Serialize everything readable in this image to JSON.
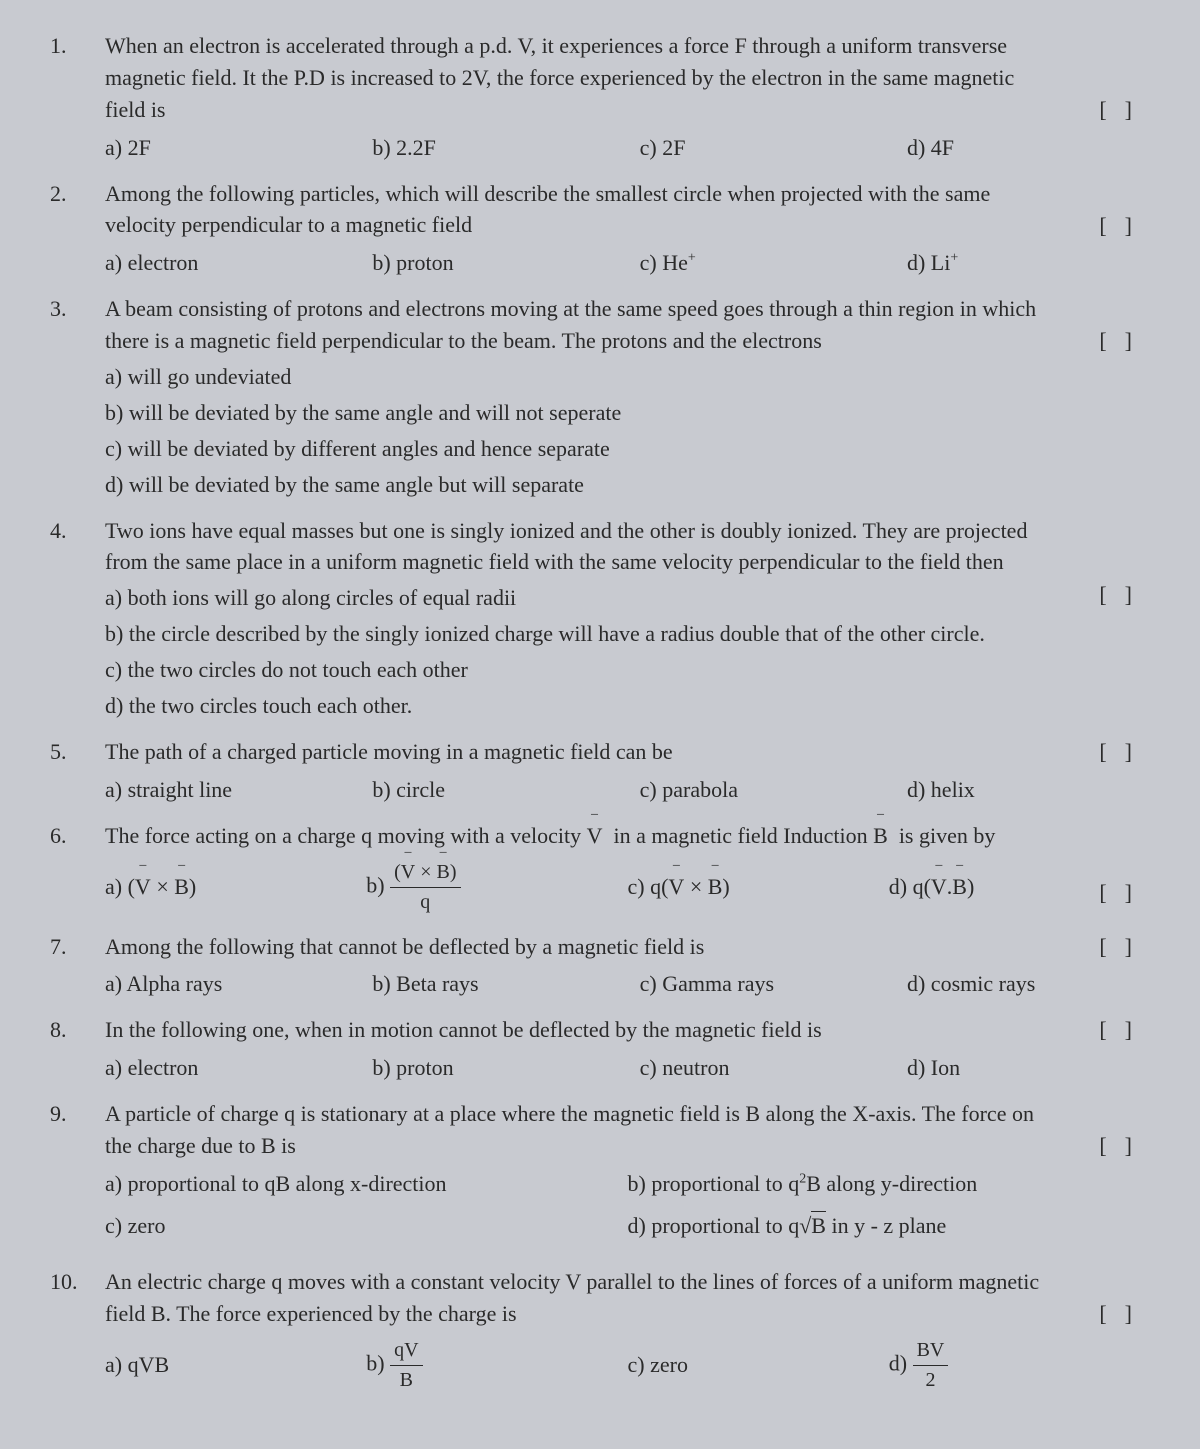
{
  "questions": [
    {
      "num": "1.",
      "text": "When an electron is accelerated through a p.d. V, it experiences a force F through a uniform transverse magnetic field. It the P.D is increased to 2V, the force experienced by the electron in the same magnetic field is",
      "bracket_line": 2,
      "options_inline": [
        {
          "label": "a) 2F"
        },
        {
          "label": "b) 2.2F"
        },
        {
          "label": "c) 2F"
        },
        {
          "label": "d) 4F"
        }
      ]
    },
    {
      "num": "2.",
      "text": "Among the following particles, which will describe the smallest circle when projected with the same velocity perpendicular to a magnetic field",
      "bracket_line": 1,
      "options_inline": [
        {
          "label": "a) electron"
        },
        {
          "label": "b) proton"
        },
        {
          "html": "c) He<sup>+</sup>"
        },
        {
          "html": "d) Li<sup>+</sup>"
        }
      ]
    },
    {
      "num": "3.",
      "text": "A beam consisting of protons and electrons moving at the same speed goes through a thin region in which there is a magnetic field perpendicular to the beam. The protons and the electrons",
      "bracket_line": 1,
      "options_list": [
        "a) will go undeviated",
        "b) will be deviated by the same angle and will not seperate",
        "c) will be deviated by different angles and hence separate",
        "d) will be deviated by the same angle but will separate"
      ]
    },
    {
      "num": "4.",
      "text": "Two ions have equal masses but one is singly ionized and the other is doubly ionized. They are projected from the same place in a uniform magnetic field with the same velocity perpendicular to the field then",
      "bracket_line": 2,
      "options_list": [
        "a) both ions will go along circles of equal radii",
        "b) the circle described by the singly ionized charge will have a radius double that of the other circle.",
        "c) the two circles do not touch each other",
        "d) the two circles touch each other."
      ]
    },
    {
      "num": "5.",
      "text": "The path of a charged particle moving in a magnetic field can be",
      "bracket_line": 0,
      "options_inline": [
        {
          "label": "a) straight line"
        },
        {
          "label": "b) circle"
        },
        {
          "label": "c) parabola"
        },
        {
          "label": "d) helix"
        }
      ]
    },
    {
      "num": "6.",
      "text_html": "The force acting on a charge q moving with a velocity <span class='vec'>V</span> &nbsp;in a magnetic field Induction <span class='vec'>B</span> &nbsp;is given by",
      "bracket_line": 1,
      "options_math": [
        "a) (<span class='vec'>V</span> × <span class='vec'>B</span>)",
        "b) <span class='frac'><span class='num'>(<span class='vec'>V</span> × <span class='vec'>B</span>)</span><span class='den'>q</span></span>",
        "c) q(<span class='vec'>V</span> × <span class='vec'>B</span>)",
        "d) q(<span class='vec'>V</span>.<span class='vec'>B</span>)"
      ]
    },
    {
      "num": "7.",
      "text": "Among  the following that cannot be deflected by a magnetic field is",
      "bracket_line": 0,
      "options_inline": [
        {
          "label": "a) Alpha rays"
        },
        {
          "label": "b) Beta rays"
        },
        {
          "label": "c) Gamma rays"
        },
        {
          "label": "d) cosmic rays"
        }
      ]
    },
    {
      "num": "8.",
      "text": "In the following one, when in motion cannot be deflected by the magnetic field is",
      "bracket_line": 0,
      "options_inline": [
        {
          "label": "a) electron"
        },
        {
          "label": "b) proton"
        },
        {
          "label": "c) neutron"
        },
        {
          "label": "d) Ion"
        }
      ]
    },
    {
      "num": "9.",
      "text": "A particle of charge q is stationary at a place where the magnetic field is B along the X-axis. The force on the charge due to B is",
      "bracket_line": 1,
      "options_two_col": [
        [
          "a) proportional to qB along x-direction",
          "c) zero"
        ],
        [
          "b) proportional to q<sup>2</sup>B along y-direction",
          "d) proportional to q√<span class='sqrt'>B</span> in y - z plane"
        ]
      ]
    },
    {
      "num": "10.",
      "text": "An electric charge q moves with a constant velocity V parallel to the lines of forces of a uniform magnetic field B. The force experienced by the charge is",
      "bracket_line": 1,
      "options_math": [
        "a) qVB",
        "b) <span class='frac'><span class='num'>qV</span><span class='den'>B</span></span>",
        "c) zero",
        "d) <span class='frac'><span class='num'>BV</span><span class='den'>2</span></span>"
      ]
    }
  ],
  "bracket_text": "[]"
}
